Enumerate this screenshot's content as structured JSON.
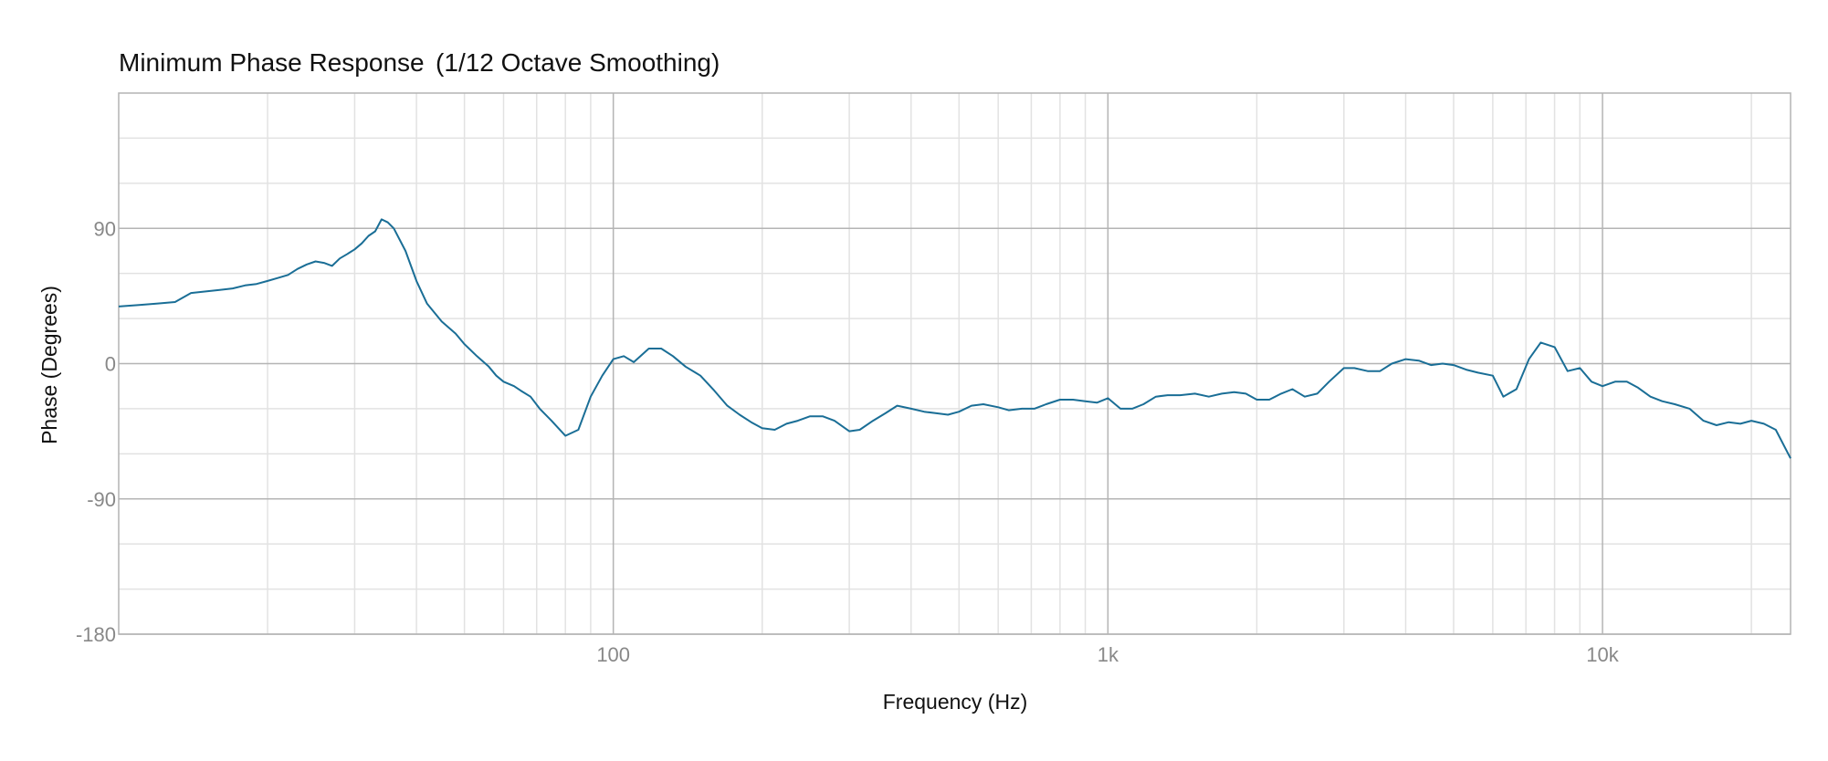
{
  "chart_data": {
    "type": "line",
    "title": "Minimum Phase Response",
    "subtitle": "(1/12 Octave Smoothing)",
    "xlabel": "Frequency (Hz)",
    "ylabel": "Phase (Degrees)",
    "x_scale": "log",
    "xlim": [
      10,
      24000
    ],
    "ylim": [
      -180,
      180
    ],
    "x_ticks": [
      {
        "value": 100,
        "label": "100"
      },
      {
        "value": 1000,
        "label": "1k"
      },
      {
        "value": 10000,
        "label": "10k"
      }
    ],
    "y_ticks": [
      {
        "value": 90,
        "label": "90"
      },
      {
        "value": 0,
        "label": "0"
      },
      {
        "value": -90,
        "label": "-90"
      },
      {
        "value": -180,
        "label": "-180"
      }
    ],
    "grid": true,
    "legend": "none",
    "colors": {
      "line": "#1a6e96",
      "grid_major": "#b4b4b4",
      "grid_minor": "#e2e2e2",
      "frame": "#b4b4b4"
    },
    "series": [
      {
        "x": [
          10,
          11,
          12,
          13,
          14,
          15,
          16,
          17,
          18,
          19,
          20,
          21,
          22,
          23,
          24,
          25,
          26,
          27,
          28,
          29,
          30,
          31,
          32,
          33,
          34,
          35,
          36,
          38,
          40,
          42,
          45,
          48,
          50,
          53,
          56,
          58,
          60,
          63,
          65,
          68,
          71,
          75,
          80,
          85,
          90,
          95,
          100,
          105,
          110,
          118,
          125,
          132,
          140,
          150,
          160,
          170,
          180,
          190,
          200,
          212,
          224,
          236,
          250,
          265,
          280,
          300,
          315,
          335,
          355,
          375,
          400,
          425,
          450,
          475,
          500,
          530,
          560,
          600,
          630,
          670,
          710,
          750,
          800,
          850,
          900,
          950,
          1000,
          1060,
          1120,
          1180,
          1250,
          1320,
          1400,
          1500,
          1600,
          1700,
          1800,
          1900,
          2000,
          2120,
          2240,
          2360,
          2500,
          2650,
          2800,
          3000,
          3150,
          3350,
          3550,
          3750,
          4000,
          4250,
          4500,
          4750,
          5000,
          5300,
          5600,
          6000,
          6300,
          6700,
          7100,
          7500,
          8000,
          8500,
          9000,
          9500,
          10000,
          10600,
          11200,
          11800,
          12500,
          13200,
          14000,
          15000,
          16000,
          17000,
          18000,
          19000,
          20000,
          21200,
          22400,
          24000
        ],
        "values": [
          38,
          39,
          40,
          41,
          47,
          48,
          49,
          50,
          52,
          53,
          55,
          57,
          59,
          63,
          66,
          68,
          67,
          65,
          70,
          73,
          76,
          80,
          85,
          88,
          96,
          94,
          90,
          75,
          55,
          40,
          28,
          20,
          13,
          5,
          -2,
          -8,
          -12,
          -15,
          -18,
          -22,
          -30,
          -38,
          -48,
          -44,
          -22,
          -8,
          3,
          5,
          1,
          10,
          10,
          5,
          -2,
          -8,
          -18,
          -28,
          -34,
          -39,
          -43,
          -44,
          -40,
          -38,
          -35,
          -35,
          -38,
          -45,
          -44,
          -38,
          -33,
          -28,
          -30,
          -32,
          -33,
          -34,
          -32,
          -28,
          -27,
          -29,
          -31,
          -30,
          -30,
          -27,
          -24,
          -24,
          -25,
          -26,
          -23,
          -30,
          -30,
          -27,
          -22,
          -21,
          -21,
          -20,
          -22,
          -20,
          -19,
          -20,
          -24,
          -24,
          -20,
          -17,
          -22,
          -20,
          -12,
          -3,
          -3,
          -5,
          -5,
          0,
          3,
          2,
          -1,
          0,
          -1,
          -4,
          -6,
          -8,
          -22,
          -17,
          3,
          14,
          11,
          -5,
          -3,
          -12,
          -15,
          -12,
          -12,
          -16,
          -22,
          -25,
          -27,
          -30,
          -38,
          -41,
          -39,
          -40,
          -38,
          -40,
          -44,
          -63
        ]
      }
    ]
  }
}
